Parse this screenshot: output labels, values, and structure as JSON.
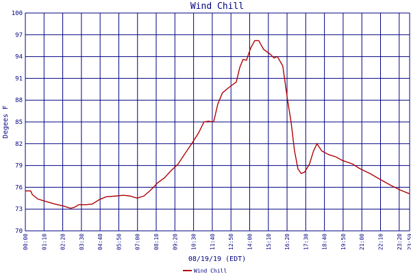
{
  "chart_data": {
    "type": "line",
    "title": "Wind Chill",
    "ylabel": "Degees F",
    "xlabel": "08/19/19 (EDT)",
    "x": [
      0,
      20,
      26,
      46,
      72,
      110,
      144,
      170,
      187,
      200,
      226,
      251,
      277,
      303,
      341,
      367,
      392,
      418,
      444,
      469,
      495,
      521,
      546,
      572,
      597,
      623,
      649,
      669,
      685,
      705,
      721,
      738,
      764,
      790,
      803,
      815,
      828,
      844,
      859,
      874,
      892,
      918,
      931,
      944,
      964,
      982,
      995,
      1008,
      1021,
      1033,
      1046,
      1064,
      1079,
      1092,
      1110,
      1136,
      1162,
      1187,
      1226,
      1251,
      1290,
      1328,
      1367,
      1405,
      1439
    ],
    "series": [
      {
        "name": "Wind Chill",
        "color": "#b00000",
        "values": [
          75.5,
          75.5,
          75.0,
          74.4,
          74.1,
          73.7,
          73.4,
          73.1,
          73.3,
          73.6,
          73.6,
          73.7,
          74.3,
          74.7,
          74.8,
          74.9,
          74.8,
          74.5,
          74.8,
          75.6,
          76.6,
          77.3,
          78.3,
          79.2,
          80.6,
          82.0,
          83.5,
          85.0,
          85.1,
          85.0,
          87.5,
          89.0,
          89.8,
          90.5,
          92.5,
          93.6,
          93.5,
          95.2,
          96.2,
          96.2,
          95.0,
          94.3,
          93.8,
          94.0,
          92.7,
          88.0,
          85.0,
          81.0,
          78.5,
          77.9,
          78.1,
          79.2,
          81.0,
          82.0,
          81.0,
          80.5,
          80.2,
          79.7,
          79.2,
          78.6,
          77.9,
          77.1,
          76.3,
          75.6,
          75.1
        ]
      }
    ],
    "xlim": [
      0,
      1439
    ],
    "xticks": [
      {
        "value": 0,
        "label": "00:00"
      },
      {
        "value": 70,
        "label": "01:10"
      },
      {
        "value": 140,
        "label": "02:20"
      },
      {
        "value": 210,
        "label": "03:30"
      },
      {
        "value": 280,
        "label": "04:40"
      },
      {
        "value": 350,
        "label": "05:50"
      },
      {
        "value": 420,
        "label": "07:00"
      },
      {
        "value": 490,
        "label": "08:10"
      },
      {
        "value": 560,
        "label": "09:20"
      },
      {
        "value": 630,
        "label": "10:30"
      },
      {
        "value": 700,
        "label": "11:40"
      },
      {
        "value": 770,
        "label": "12:50"
      },
      {
        "value": 840,
        "label": "14:00"
      },
      {
        "value": 910,
        "label": "15:10"
      },
      {
        "value": 980,
        "label": "16:20"
      },
      {
        "value": 1050,
        "label": "17:30"
      },
      {
        "value": 1120,
        "label": "18:40"
      },
      {
        "value": 1190,
        "label": "19:50"
      },
      {
        "value": 1260,
        "label": "21:00"
      },
      {
        "value": 1330,
        "label": "22:10"
      },
      {
        "value": 1400,
        "label": "23:20"
      },
      {
        "value": 1439,
        "label": "23:59"
      }
    ],
    "ylim": [
      70,
      100
    ],
    "yticks": [
      70,
      73,
      76,
      79,
      82,
      85,
      88,
      91,
      94,
      97,
      100
    ],
    "grid": true
  }
}
